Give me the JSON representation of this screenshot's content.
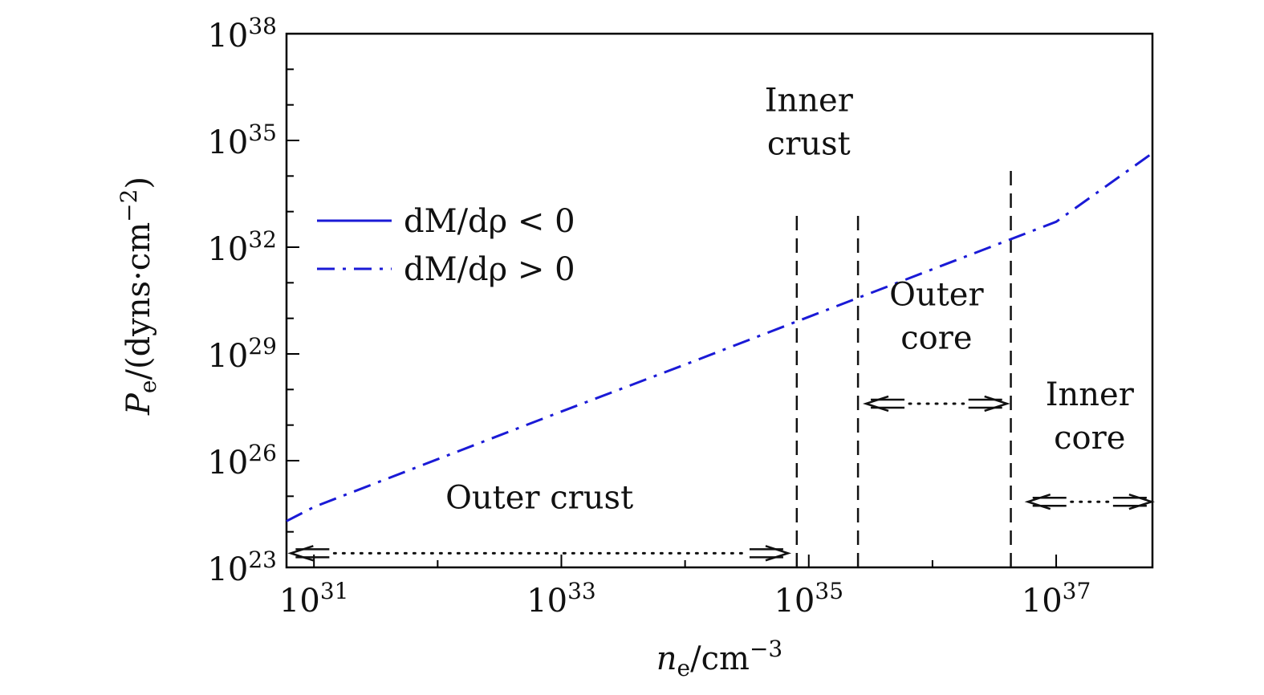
{
  "chart_data": {
    "type": "line",
    "x_scale": "log",
    "y_scale": "log",
    "xlim": [
      6e+30,
      6e+37
    ],
    "ylim": [
      1e+23,
      1e+38
    ],
    "xlabel": {
      "base": "n",
      "sub": "e",
      "unit": "/cm",
      "sup": "−3"
    },
    "ylabel": {
      "base": "P",
      "sub": "e",
      "unit": "/(dyns·cm",
      "sup": "−2",
      "close": ")"
    },
    "x_ticks": [
      {
        "value": 1e+31,
        "base": "10",
        "exp": "31"
      },
      {
        "value": 1e+33,
        "base": "10",
        "exp": "33"
      },
      {
        "value": 1e+35,
        "base": "10",
        "exp": "35"
      },
      {
        "value": 1e+37,
        "base": "10",
        "exp": "37"
      }
    ],
    "y_ticks": [
      {
        "value": 1e+23,
        "base": "10",
        "exp": "23"
      },
      {
        "value": 1e+26,
        "base": "10",
        "exp": "26"
      },
      {
        "value": 1e+29,
        "base": "10",
        "exp": "29"
      },
      {
        "value": 1e+32,
        "base": "10",
        "exp": "32"
      },
      {
        "value": 1e+35,
        "base": "10",
        "exp": "35"
      },
      {
        "value": 1e+38,
        "base": "10",
        "exp": "38"
      }
    ],
    "series": [
      {
        "name": "dM/dρ < 0",
        "label_text": "dM/dρ < 0",
        "style": "solid",
        "color": "#1a1ad6",
        "x": [],
        "y": []
      },
      {
        "name": "dM/dρ > 0",
        "label_text": "dM/dρ > 0",
        "style": "dash-dot",
        "color": "#1a1ad6",
        "x": [
          6e+30,
          1e+31,
          1e+32,
          1e+33,
          1e+34,
          1e+35,
          1e+36,
          1e+37,
          6e+37
        ],
        "y": [
          2e+24,
          5e+24,
          1.1e+26,
          2.4e+27,
          5e+28,
          1.1e+30,
          2.4e+31,
          5.2e+32,
          4.4e+34
        ]
      }
    ],
    "dashed_boundaries": [
      {
        "x": 8e+34,
        "y_top": 1e+33
      },
      {
        "x": 2.5e+35,
        "y_top": 1e+33
      },
      {
        "x": 4.3e+36,
        "y_top": 1.8e+34
      }
    ],
    "regions": [
      {
        "lines": [
          "Outer crust"
        ],
        "arrow_from": 6.5e+30,
        "arrow_to": 6.8e+34,
        "arrow_y": 2.5e+23,
        "label_y": 4.5e+24
      },
      {
        "lines": [
          "Inner",
          "crust"
        ],
        "label_x": 1e+35,
        "label_y": 4e+34,
        "no_arrow": true
      },
      {
        "lines": [
          "Outer",
          "core"
        ],
        "arrow_from": 2.9e+35,
        "arrow_to": 4e+36,
        "arrow_y": 4e+27,
        "label_y": 1.4e+29
      },
      {
        "lines": [
          "Inner",
          "core"
        ],
        "arrow_from": 5.9e+36,
        "arrow_to": 5.9e+37,
        "arrow_y": 7e+24,
        "label_y": 2.2e+26
      }
    ],
    "legend_position": "upper-left",
    "grid": false
  }
}
